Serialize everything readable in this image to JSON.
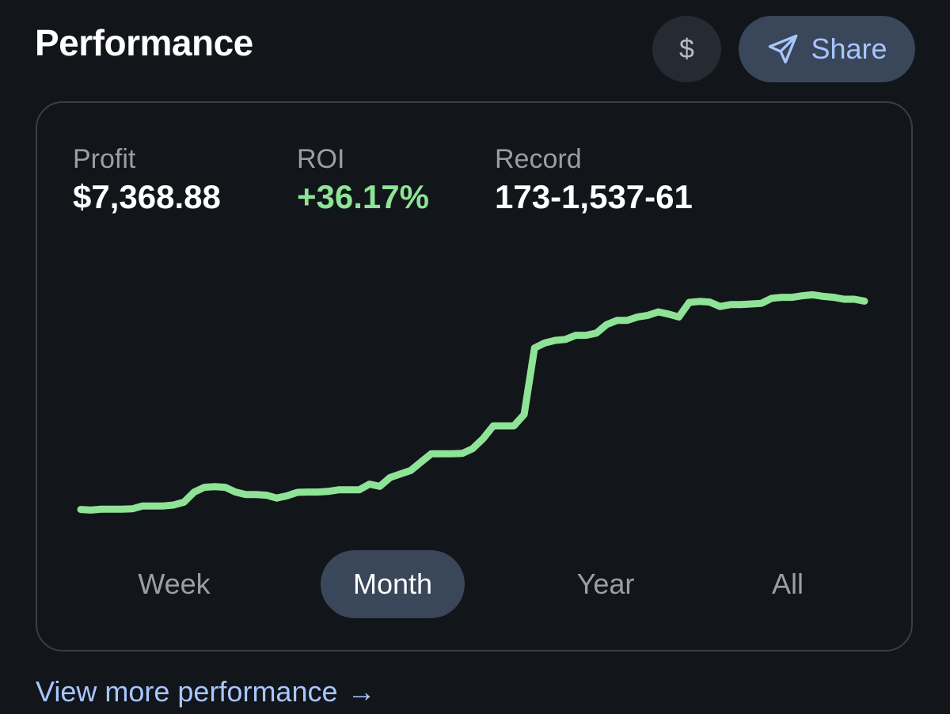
{
  "header": {
    "title": "Performance",
    "currency_label": "$",
    "share_label": "Share"
  },
  "stats": {
    "profit": {
      "label": "Profit",
      "value": "$7,368.88"
    },
    "roi": {
      "label": "ROI",
      "value": "+36.17%"
    },
    "record": {
      "label": "Record",
      "value": "173-1,537-61"
    }
  },
  "colors": {
    "line": "#8ee396",
    "accent": "#a8c6ff",
    "active_tab_bg": "#3a4659"
  },
  "range_tabs": {
    "week": "Week",
    "month": "Month",
    "year": "Year",
    "all": "All",
    "selected": "Month"
  },
  "footer": {
    "view_more_label": "View more performance",
    "view_more_arrow": "→"
  },
  "chart_data": {
    "type": "line",
    "title": "",
    "xlabel": "",
    "ylabel": "",
    "series": [
      {
        "name": "Profit",
        "values": [
          4.1,
          3.9,
          4.2,
          4.2,
          4.2,
          4.3,
          5.2,
          5.2,
          5.2,
          5.5,
          6.4,
          9.6,
          11.1,
          11.3,
          11.1,
          9.6,
          8.8,
          8.8,
          8.6,
          7.7,
          8.4,
          9.5,
          9.6,
          9.6,
          9.8,
          10.3,
          10.3,
          10.3,
          12.1,
          11.4,
          14.2,
          15.3,
          16.4,
          19.1,
          21.7,
          21.7,
          21.7,
          21.8,
          23.3,
          26.4,
          30.5,
          30.5,
          30.5,
          34.1,
          55.1,
          56.7,
          57.5,
          57.8,
          59.1,
          59.1,
          59.8,
          62.5,
          63.8,
          63.8,
          64.9,
          65.4,
          66.5,
          65.8,
          64.9,
          69.5,
          69.8,
          69.6,
          68.2,
          68.8,
          68.8,
          69.0,
          69.2,
          70.8,
          71.1,
          71.1,
          71.6,
          71.9,
          71.4,
          71.1,
          70.5,
          70.5,
          69.9
        ]
      }
    ],
    "ylim": [
      0,
      100
    ]
  }
}
